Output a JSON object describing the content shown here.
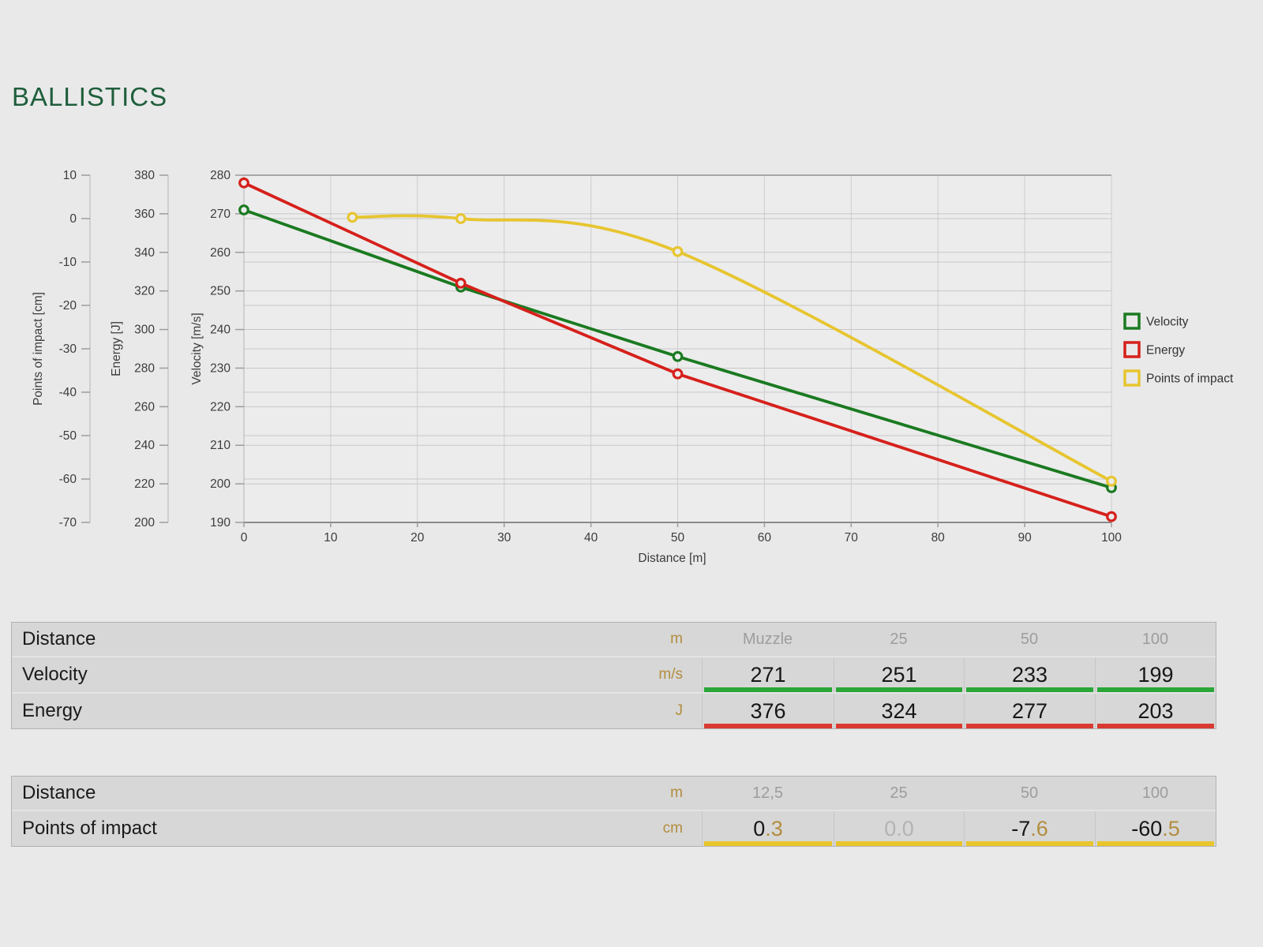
{
  "page": {
    "title": "BALLISTICS"
  },
  "colors": {
    "title_green": "#1f5e3c",
    "accent_gold": "#b28d3e",
    "muted_gray": "#b3b3b3",
    "header_gray": "#9d9d9d",
    "velocity_green": "#1a7a20",
    "energy_red": "#d6201b",
    "impact_yellow": "#e7c52f",
    "bar_green": "#2aa638",
    "bar_red": "#d93a31",
    "bar_yellow": "#e8c62c"
  },
  "chart_data": {
    "type": "line",
    "grid": true,
    "x_axis": {
      "label": "Distance [m]",
      "min": 0,
      "max": 100,
      "tick_step": 10
    },
    "y_axes": [
      {
        "id": "poi",
        "label": "Points of impact [cm]",
        "min": -70,
        "max": 10,
        "tick_step": 10
      },
      {
        "id": "energy",
        "label": "Energy [J]",
        "min": 200,
        "max": 380,
        "tick_step": 20
      },
      {
        "id": "velocity",
        "label": "Velocity [m/s]",
        "min": 190,
        "max": 280,
        "tick_step": 10
      }
    ],
    "series": [
      {
        "name": "Velocity",
        "axis": "velocity",
        "color": "#1a7a20",
        "smooth": false,
        "x": [
          0,
          25,
          50,
          100
        ],
        "values": [
          271,
          251,
          233,
          199
        ]
      },
      {
        "name": "Energy",
        "axis": "energy",
        "color": "#d6201b",
        "smooth": false,
        "x": [
          0,
          25,
          50,
          100
        ],
        "values": [
          376,
          324,
          277,
          203
        ]
      },
      {
        "name": "Points of impact",
        "axis": "poi",
        "color": "#e7c52f",
        "smooth": true,
        "x": [
          12.5,
          25,
          50,
          100
        ],
        "values": [
          0.3,
          0.0,
          -7.6,
          -60.5
        ]
      }
    ],
    "legend": {
      "position": "right",
      "items": [
        "Velocity",
        "Energy",
        "Points of impact"
      ]
    }
  },
  "tables": [
    {
      "name": "velocity-energy-table",
      "header": {
        "label": "Distance",
        "unit": "m",
        "values": [
          "Muzzle",
          "25",
          "50",
          "100"
        ]
      },
      "rows": [
        {
          "label": "Velocity",
          "unit": "m/s",
          "values": [
            "271",
            "251",
            "233",
            "199"
          ],
          "bar_color": "#2aa638"
        },
        {
          "label": "Energy",
          "unit": "J",
          "values": [
            "376",
            "324",
            "277",
            "203"
          ],
          "bar_color": "#d93a31"
        }
      ]
    },
    {
      "name": "points-of-impact-table",
      "header": {
        "label": "Distance",
        "unit": "m",
        "values": [
          "12,5",
          "25",
          "50",
          "100"
        ]
      },
      "rows": [
        {
          "label": "Points of impact",
          "unit": "cm",
          "values": [
            "0.3",
            "0.0",
            "-7.6",
            "-60.5"
          ],
          "bar_color": "#e8c62c",
          "accent_decimals": true,
          "muted_values": [
            false,
            true,
            false,
            false
          ]
        }
      ]
    }
  ]
}
